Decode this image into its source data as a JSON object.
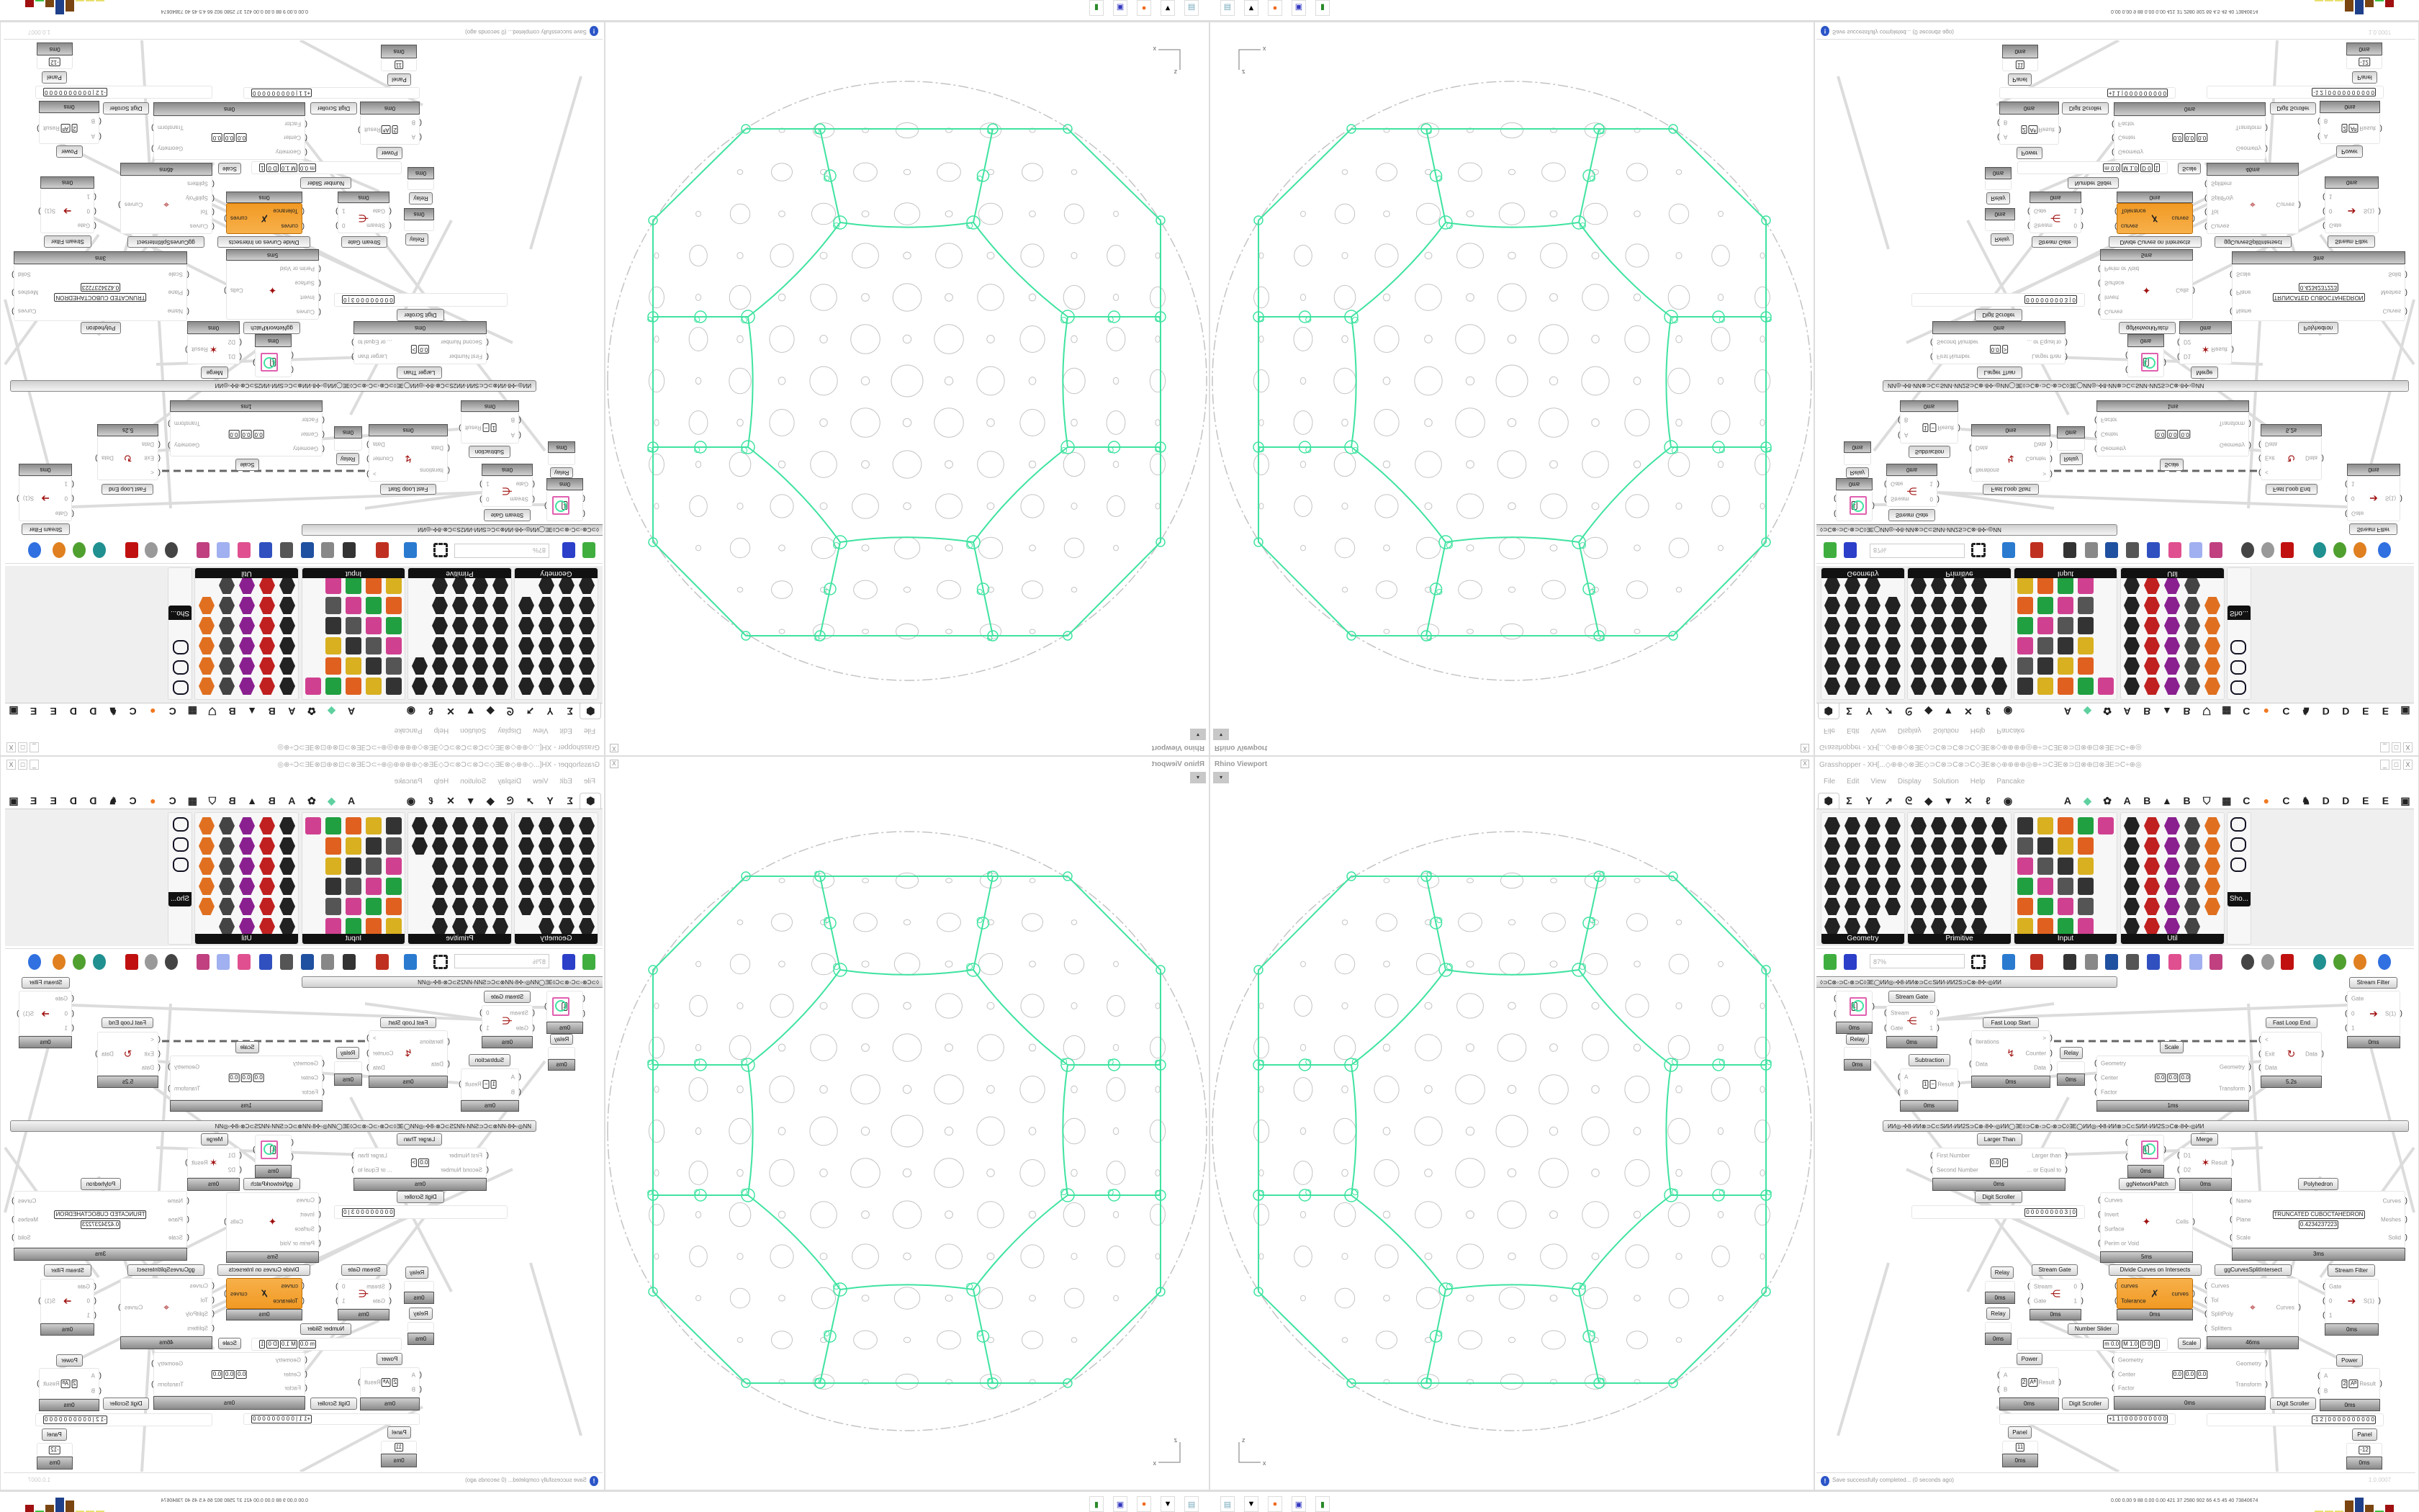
{
  "grasshopper": {
    "title": "Grasshopper - XH[...◇⊕⊕◇⊗∃E◇⊃C⊗⊃C⊗⊃C◇∃E⊗◇⊕⊕⊕⊕◎⊕÷⊃C∃E⊗⊃⊡⊗⊕⊡⊗∃E⊃C÷⊕◎",
    "window_buttons": [
      "_",
      "□",
      "X"
    ],
    "menu": [
      "File",
      "Edit",
      "View",
      "Display",
      "Solution",
      "Help",
      "Pancake"
    ],
    "tabs": [
      {
        "icon": "params-hexagon-icon",
        "glyph": "⬢",
        "selected": true
      },
      {
        "icon": "maths-sigma-icon",
        "glyph": "Σ"
      },
      {
        "icon": "sets-icon",
        "glyph": "Y"
      },
      {
        "icon": "vector-icon",
        "glyph": "➚"
      },
      {
        "icon": "curve-icon",
        "glyph": "ᘓ"
      },
      {
        "icon": "surface-icon",
        "glyph": "◆"
      },
      {
        "icon": "mesh-icon",
        "glyph": "▼"
      },
      {
        "icon": "intersect-icon",
        "glyph": "✕"
      },
      {
        "icon": "transform-icon",
        "glyph": "ℓ"
      },
      {
        "icon": "display-eye-icon",
        "glyph": "◉"
      },
      {
        "gap": true
      },
      {
        "label": "A"
      },
      {
        "icon": "crystal-icon",
        "glyph": "◆",
        "color": "#5fd0a0"
      },
      {
        "icon": "bug-icon",
        "glyph": "✿"
      },
      {
        "label": "A"
      },
      {
        "label": "B"
      },
      {
        "icon": "mountain-icon",
        "glyph": "▲"
      },
      {
        "label": "B"
      },
      {
        "icon": "shield-icon",
        "glyph": "⛉"
      },
      {
        "icon": "grid-icon",
        "glyph": "▦"
      },
      {
        "label": "C"
      },
      {
        "icon": "orange-circle-icon",
        "glyph": "●",
        "color": "#f07820"
      },
      {
        "label": "C"
      },
      {
        "icon": "rooster-icon",
        "glyph": "♞"
      },
      {
        "label": "D"
      },
      {
        "label": "D"
      },
      {
        "label": "E"
      },
      {
        "label": "E"
      },
      {
        "icon": "box-icon",
        "glyph": "▣"
      }
    ],
    "panels": [
      {
        "label": "Geometry"
      },
      {
        "label": "Primitive"
      },
      {
        "label": "Input"
      },
      {
        "label": "Util"
      },
      {
        "label": "Sho..."
      }
    ],
    "toolbar": {
      "zoom": "87%",
      "icons": [
        "open-file-icon",
        "save-icon",
        "zoom-extents-icon",
        "preview-eye-icon",
        "sketch-icon",
        "plugin-icon",
        "email-icon",
        "gha-icon",
        "window-icon",
        "search-icon",
        "package-icon",
        "bulb-icon",
        "wires-icon",
        "shape-icon",
        "ring-icon",
        "red-shape-icon",
        "teal-shape-icon",
        "green-shape-icon",
        "sphere-icon",
        "blue-gem-icon"
      ]
    },
    "group_labels": [
      "◊⊃C⊗◦⊃C◦⊗⊃C◊∃E◯ИИ◎◦✣8◦ИИ⊗⊃C⊂SИИ◦ИИ2S⊃C⊗◦8✣◦◎ИИ",
      "ИИ◎◦✣8◦ИИ⊗⊃C⊂SИИ◦ИИ2S⊃C⊗◦8✣◦◎ИИ◯∃E◊⊃C⊗◦⊃C◦⊗⊃C◊∃E◯ИИ◎◦✣8◦ИИ⊗⊃C⊂SИИ◦ИИ2S⊃C⊗◦8✣◦◎ИИ"
    ],
    "components": [
      {
        "name": "",
        "inputs": [
          "",
          ""
        ],
        "outputs": [
          ""
        ],
        "values": [
          "1"
        ],
        "icon": "panel-circle-icon",
        "time": "0ms"
      },
      {
        "name": "Relay",
        "inputs": [],
        "outputs": [],
        "icon": "relay-icon",
        "time": "0ms"
      },
      {
        "name": "Stream Gate",
        "inputs": [
          "Stream",
          "Gate"
        ],
        "outputs": [
          "0",
          "1"
        ],
        "icon": "stream-gate-icon",
        "time": "0ms"
      },
      {
        "name": "Subtraction",
        "inputs": [
          "A",
          "B"
        ],
        "outputs": [
          "Result"
        ],
        "values": [
          "1",
          "−"
        ],
        "icon": "minus-icon",
        "time": "0ms"
      },
      {
        "name": "Fast Loop Start",
        "inputs": [
          "Iterations",
          "Data"
        ],
        "outputs": [
          ">",
          "Counter",
          "Data"
        ],
        "icon": "loop-start-icon",
        "time": "0ms"
      },
      {
        "name": "Relay",
        "inputs": [],
        "outputs": [],
        "icon": "relay-icon",
        "time": "0ms"
      },
      {
        "name": "Scale",
        "inputs": [
          "Geometry",
          "Center",
          "Factor"
        ],
        "outputs": [
          "Geometry",
          "Transform"
        ],
        "values": [
          "0.0",
          "0.0",
          "0.0"
        ],
        "icon": "scale-icon",
        "time": "1ms"
      },
      {
        "name": "Fast Loop End",
        "inputs": [
          "<",
          "Exit",
          "Data"
        ],
        "outputs": [
          "Data"
        ],
        "icon": "loop-end-icon",
        "time": "5.2s"
      },
      {
        "name": "Stream Filter",
        "inputs": [
          "Gate",
          "0",
          "1"
        ],
        "outputs": [
          "S(1)"
        ],
        "icon": "stream-filter-icon",
        "time": "0ms"
      },
      {
        "name": "Larger Than",
        "inputs": [
          "First Number",
          "Second Number"
        ],
        "outputs": [
          "Larger than",
          "... or Equal to"
        ],
        "values": [
          "0.0",
          ">"
        ],
        "icon": "larger-than-icon",
        "time": "0ms"
      },
      {
        "name": "Digit Scroller",
        "inputs": [],
        "outputs": [],
        "values": [
          "0 0 0 0 0 0 0 0 3 | 0"
        ],
        "icon": "digit-scroller-icon",
        "time": ""
      },
      {
        "name": "",
        "inputs": [
          "",
          ""
        ],
        "outputs": [
          ""
        ],
        "values": [
          "1"
        ],
        "icon": "panel-circle-icon",
        "time": "0ms"
      },
      {
        "name": "Merge",
        "inputs": [
          "D1",
          "D2"
        ],
        "outputs": [
          "Result"
        ],
        "icon": "merge-icon",
        "time": "0ms"
      },
      {
        "name": "ggNetworkPatch",
        "inputs": [
          "Curves",
          "Invert",
          "Surface",
          "Perim or Void"
        ],
        "outputs": [
          "Cells"
        ],
        "icon": "network-patch-icon",
        "time": "5ms"
      },
      {
        "name": "Polyhedron",
        "inputs": [
          "Name",
          "Plane",
          "Scale"
        ],
        "outputs": [
          "Curves",
          "Meshes",
          "Solid"
        ],
        "values": [
          "TRUNCATED CUBOCTAHEDRON",
          "0.4234237223"
        ],
        "icon": "polyhedron-icon",
        "time": "3ms"
      },
      {
        "name": "Relay",
        "inputs": [],
        "outputs": [],
        "icon": "relay-icon",
        "time": "0ms"
      },
      {
        "name": "Relay",
        "inputs": [],
        "outputs": [],
        "icon": "relay-icon",
        "time": "0ms"
      },
      {
        "name": "Stream Gate",
        "inputs": [
          "Stream",
          "Gate"
        ],
        "outputs": [
          "0",
          "1"
        ],
        "icon": "stream-gate-icon",
        "time": "0ms"
      },
      {
        "name": "Divide Curves on Intersects",
        "inputs": [
          "curves",
          "Tolerance"
        ],
        "outputs": [
          "curves"
        ],
        "icon": "divide-curves-icon",
        "time": "0ms",
        "orange": true
      },
      {
        "name": "ggCurvesSplitIntersect",
        "inputs": [
          "Curves",
          "Tol",
          "SplitPoly",
          "Splitters"
        ],
        "outputs": [
          "Curves"
        ],
        "icon": "split-intersect-icon",
        "time": "46ms"
      },
      {
        "name": "Stream Filter",
        "inputs": [
          "Gate",
          "0",
          "1"
        ],
        "outputs": [
          "S(1)"
        ],
        "icon": "stream-filter-icon",
        "time": "0ms"
      },
      {
        "name": "Number Slider",
        "inputs": [],
        "outputs": [],
        "values": [
          "m 0.0",
          "M 1.0",
          "D 0",
          "1"
        ],
        "icon": "slider-icon",
        "time": ""
      },
      {
        "name": "Scale",
        "inputs": [
          "Geometry",
          "Center",
          "Factor"
        ],
        "outputs": [
          "Geometry",
          "Transform"
        ],
        "values": [
          "0.0",
          "0.0",
          "0.0"
        ],
        "icon": "scale-icon",
        "time": "0ms"
      },
      {
        "name": "Power",
        "inputs": [
          "A",
          "B"
        ],
        "outputs": [
          "Result"
        ],
        "values": [
          "2",
          "Aᴮ"
        ],
        "icon": "power-icon",
        "time": "0ms"
      },
      {
        "name": "Digit Scroller",
        "inputs": [],
        "outputs": [],
        "values": [
          "+1 1 | 0 0 0 0 0 0 0 0 0"
        ],
        "icon": "digit-scroller-icon",
        "time": ""
      },
      {
        "name": "Panel",
        "inputs": [],
        "outputs": [],
        "values": [
          "11"
        ],
        "icon": "panel-icon",
        "time": "0ms"
      },
      {
        "name": "Digit Scroller",
        "inputs": [],
        "outputs": [],
        "values": [
          "-1 2 | 0 0 0 0 0 0 0 0 0 0"
        ],
        "icon": "digit-scroller-icon",
        "time": ""
      },
      {
        "name": "Power",
        "inputs": [
          "A",
          "B"
        ],
        "outputs": [
          "Result"
        ],
        "values": [
          "2",
          "Aᴮ"
        ],
        "icon": "power-icon",
        "time": "0ms"
      },
      {
        "name": "Panel",
        "inputs": [],
        "outputs": [],
        "values": [
          "-12"
        ],
        "icon": "panel-icon",
        "time": "0ms"
      }
    ],
    "status": {
      "message": "Save successfully completed... (0 seconds ago)",
      "version": "1.0.0007"
    }
  },
  "viewport": {
    "title": "Rhino Viewport",
    "close": "X",
    "axis_z": "z",
    "axis_x": "x",
    "colors": {
      "curves": "#3fe3a0",
      "pattern": "#c4c4c4"
    }
  },
  "taskbar": {
    "apps": [
      "calculator-icon",
      "inkscape-icon",
      "firefox-icon",
      "floppy-save-icon",
      "terminal-icon"
    ],
    "stats": "0.00 0.00  9   88  0.00 0.00 421  37  2580 902  66  4.5  45  40  73840674"
  },
  "colors": {
    "orange_component": "#f19a24",
    "ribbon_label": "#111111",
    "status_icon": "#2a55c8"
  }
}
